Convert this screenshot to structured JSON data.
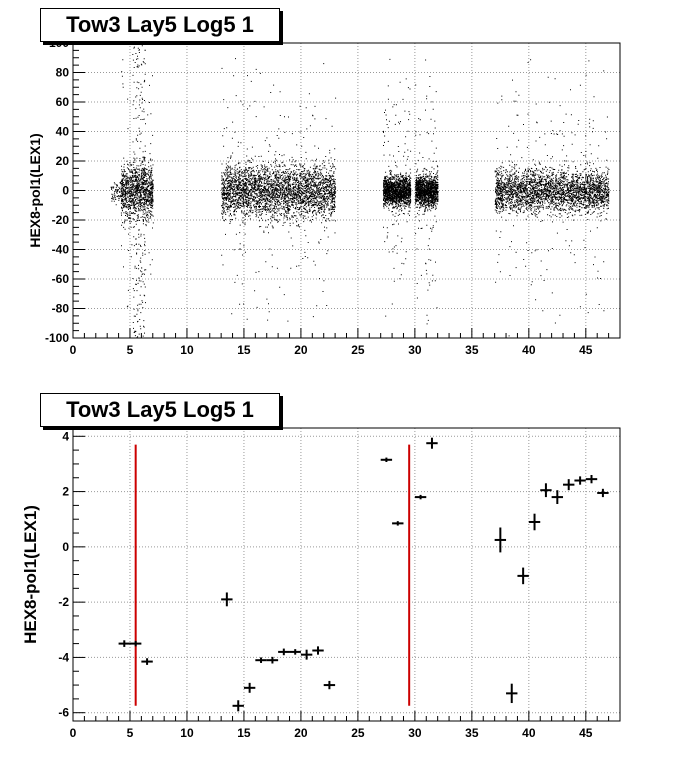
{
  "chart_data": [
    {
      "type": "scatter",
      "title": "Tow3 Lay5 Log5 1",
      "ylabel": "HEX8-pol1(LEX1)",
      "xlabel": "",
      "xlim": [
        0,
        48
      ],
      "ylim": [
        -100,
        100
      ],
      "xticks": [
        0,
        5,
        10,
        15,
        20,
        25,
        30,
        35,
        40,
        45
      ],
      "yticks": [
        -100,
        -80,
        -60,
        -40,
        -20,
        0,
        20,
        40,
        60,
        80,
        100
      ],
      "grid": true,
      "note": "dense scatter of points",
      "clusters": [
        {
          "x": [
            3.8,
            7.0
          ],
          "core_x": [
            4.2,
            7.0
          ],
          "y_spread": 15,
          "density": "high"
        },
        {
          "x": [
            13.0,
            23.0
          ],
          "y_spread": 14,
          "density": "high"
        },
        {
          "x": [
            27.2,
            29.6
          ],
          "y_spread": 10,
          "density": "very-high"
        },
        {
          "x": [
            30.0,
            32.0
          ],
          "y_spread": 10,
          "density": "very-high"
        },
        {
          "x": [
            37.0,
            47.0
          ],
          "y_spread": 12,
          "density": "high"
        }
      ]
    },
    {
      "type": "scatter",
      "title": "Tow3 Lay5 Log5 1",
      "ylabel": "HEX8-pol1(LEX1)",
      "xlabel": "",
      "xlim": [
        0,
        48
      ],
      "ylim": [
        -6.3,
        4.3
      ],
      "xticks": [
        0,
        5,
        10,
        15,
        20,
        25,
        30,
        35,
        40,
        45
      ],
      "yticks": [
        -6,
        -4,
        -2,
        0,
        2,
        4
      ],
      "grid": true,
      "points": [
        {
          "x": 4.5,
          "y": -3.5,
          "ey": 0.12
        },
        {
          "x": 5.5,
          "y": -3.5,
          "ey": 0.1
        },
        {
          "x": 6.5,
          "y": -4.15,
          "ey": 0.12
        },
        {
          "x": 13.5,
          "y": -1.9,
          "ey": 0.25
        },
        {
          "x": 14.5,
          "y": -5.75,
          "ey": 0.2
        },
        {
          "x": 15.5,
          "y": -5.1,
          "ey": 0.18
        },
        {
          "x": 16.5,
          "y": -4.1,
          "ey": 0.1
        },
        {
          "x": 17.5,
          "y": -4.1,
          "ey": 0.12
        },
        {
          "x": 18.5,
          "y": -3.8,
          "ey": 0.12
        },
        {
          "x": 19.5,
          "y": -3.8,
          "ey": 0.1
        },
        {
          "x": 20.5,
          "y": -3.9,
          "ey": 0.18
        },
        {
          "x": 21.5,
          "y": -3.75,
          "ey": 0.15
        },
        {
          "x": 22.5,
          "y": -5.0,
          "ey": 0.15
        },
        {
          "x": 27.5,
          "y": 3.15,
          "ey": 0.08
        },
        {
          "x": 28.5,
          "y": 0.85,
          "ey": 0.08
        },
        {
          "x": 30.5,
          "y": 1.8,
          "ey": 0.08
        },
        {
          "x": 31.5,
          "y": 3.75,
          "ey": 0.2
        },
        {
          "x": 37.5,
          "y": 0.25,
          "ey": 0.45
        },
        {
          "x": 38.5,
          "y": -5.3,
          "ey": 0.35
        },
        {
          "x": 39.5,
          "y": -1.05,
          "ey": 0.3
        },
        {
          "x": 40.5,
          "y": 0.9,
          "ey": 0.3
        },
        {
          "x": 41.5,
          "y": 2.05,
          "ey": 0.25
        },
        {
          "x": 42.5,
          "y": 1.8,
          "ey": 0.25
        },
        {
          "x": 43.5,
          "y": 2.25,
          "ey": 0.2
        },
        {
          "x": 44.5,
          "y": 2.4,
          "ey": 0.15
        },
        {
          "x": 45.5,
          "y": 2.45,
          "ey": 0.15
        },
        {
          "x": 46.5,
          "y": 1.95,
          "ey": 0.15
        }
      ],
      "vlines": [
        {
          "x": 5.5,
          "y": [
            -5.75,
            3.7
          ],
          "color": "#cc0000"
        },
        {
          "x": 29.5,
          "y": [
            -5.75,
            3.7
          ],
          "color": "#cc0000"
        }
      ]
    }
  ]
}
